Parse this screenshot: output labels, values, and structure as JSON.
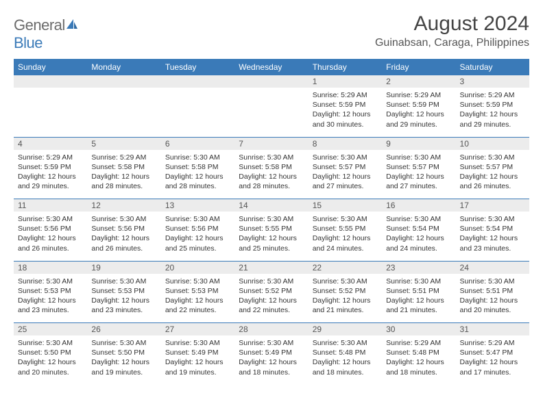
{
  "logo": {
    "text1": "General",
    "text2": "Blue"
  },
  "title": "August 2024",
  "location": "Guinabsan, Caraga, Philippines",
  "colors": {
    "header_bg": "#3a7ab8",
    "header_text": "#ffffff",
    "daynum_bg": "#ececec",
    "border": "#3a7ab8",
    "body_text": "#333333",
    "logo_gray": "#6b6b6b",
    "logo_blue": "#3a7ab8"
  },
  "weekdays": [
    "Sunday",
    "Monday",
    "Tuesday",
    "Wednesday",
    "Thursday",
    "Friday",
    "Saturday"
  ],
  "weeks": [
    [
      null,
      null,
      null,
      null,
      {
        "d": "1",
        "sr": "5:29 AM",
        "ss": "5:59 PM",
        "dl": "12 hours and 30 minutes."
      },
      {
        "d": "2",
        "sr": "5:29 AM",
        "ss": "5:59 PM",
        "dl": "12 hours and 29 minutes."
      },
      {
        "d": "3",
        "sr": "5:29 AM",
        "ss": "5:59 PM",
        "dl": "12 hours and 29 minutes."
      }
    ],
    [
      {
        "d": "4",
        "sr": "5:29 AM",
        "ss": "5:59 PM",
        "dl": "12 hours and 29 minutes."
      },
      {
        "d": "5",
        "sr": "5:29 AM",
        "ss": "5:58 PM",
        "dl": "12 hours and 28 minutes."
      },
      {
        "d": "6",
        "sr": "5:30 AM",
        "ss": "5:58 PM",
        "dl": "12 hours and 28 minutes."
      },
      {
        "d": "7",
        "sr": "5:30 AM",
        "ss": "5:58 PM",
        "dl": "12 hours and 28 minutes."
      },
      {
        "d": "8",
        "sr": "5:30 AM",
        "ss": "5:57 PM",
        "dl": "12 hours and 27 minutes."
      },
      {
        "d": "9",
        "sr": "5:30 AM",
        "ss": "5:57 PM",
        "dl": "12 hours and 27 minutes."
      },
      {
        "d": "10",
        "sr": "5:30 AM",
        "ss": "5:57 PM",
        "dl": "12 hours and 26 minutes."
      }
    ],
    [
      {
        "d": "11",
        "sr": "5:30 AM",
        "ss": "5:56 PM",
        "dl": "12 hours and 26 minutes."
      },
      {
        "d": "12",
        "sr": "5:30 AM",
        "ss": "5:56 PM",
        "dl": "12 hours and 26 minutes."
      },
      {
        "d": "13",
        "sr": "5:30 AM",
        "ss": "5:56 PM",
        "dl": "12 hours and 25 minutes."
      },
      {
        "d": "14",
        "sr": "5:30 AM",
        "ss": "5:55 PM",
        "dl": "12 hours and 25 minutes."
      },
      {
        "d": "15",
        "sr": "5:30 AM",
        "ss": "5:55 PM",
        "dl": "12 hours and 24 minutes."
      },
      {
        "d": "16",
        "sr": "5:30 AM",
        "ss": "5:54 PM",
        "dl": "12 hours and 24 minutes."
      },
      {
        "d": "17",
        "sr": "5:30 AM",
        "ss": "5:54 PM",
        "dl": "12 hours and 23 minutes."
      }
    ],
    [
      {
        "d": "18",
        "sr": "5:30 AM",
        "ss": "5:53 PM",
        "dl": "12 hours and 23 minutes."
      },
      {
        "d": "19",
        "sr": "5:30 AM",
        "ss": "5:53 PM",
        "dl": "12 hours and 23 minutes."
      },
      {
        "d": "20",
        "sr": "5:30 AM",
        "ss": "5:53 PM",
        "dl": "12 hours and 22 minutes."
      },
      {
        "d": "21",
        "sr": "5:30 AM",
        "ss": "5:52 PM",
        "dl": "12 hours and 22 minutes."
      },
      {
        "d": "22",
        "sr": "5:30 AM",
        "ss": "5:52 PM",
        "dl": "12 hours and 21 minutes."
      },
      {
        "d": "23",
        "sr": "5:30 AM",
        "ss": "5:51 PM",
        "dl": "12 hours and 21 minutes."
      },
      {
        "d": "24",
        "sr": "5:30 AM",
        "ss": "5:51 PM",
        "dl": "12 hours and 20 minutes."
      }
    ],
    [
      {
        "d": "25",
        "sr": "5:30 AM",
        "ss": "5:50 PM",
        "dl": "12 hours and 20 minutes."
      },
      {
        "d": "26",
        "sr": "5:30 AM",
        "ss": "5:50 PM",
        "dl": "12 hours and 19 minutes."
      },
      {
        "d": "27",
        "sr": "5:30 AM",
        "ss": "5:49 PM",
        "dl": "12 hours and 19 minutes."
      },
      {
        "d": "28",
        "sr": "5:30 AM",
        "ss": "5:49 PM",
        "dl": "12 hours and 18 minutes."
      },
      {
        "d": "29",
        "sr": "5:30 AM",
        "ss": "5:48 PM",
        "dl": "12 hours and 18 minutes."
      },
      {
        "d": "30",
        "sr": "5:29 AM",
        "ss": "5:48 PM",
        "dl": "12 hours and 18 minutes."
      },
      {
        "d": "31",
        "sr": "5:29 AM",
        "ss": "5:47 PM",
        "dl": "12 hours and 17 minutes."
      }
    ]
  ],
  "labels": {
    "sunrise": "Sunrise:",
    "sunset": "Sunset:",
    "daylight": "Daylight:"
  }
}
